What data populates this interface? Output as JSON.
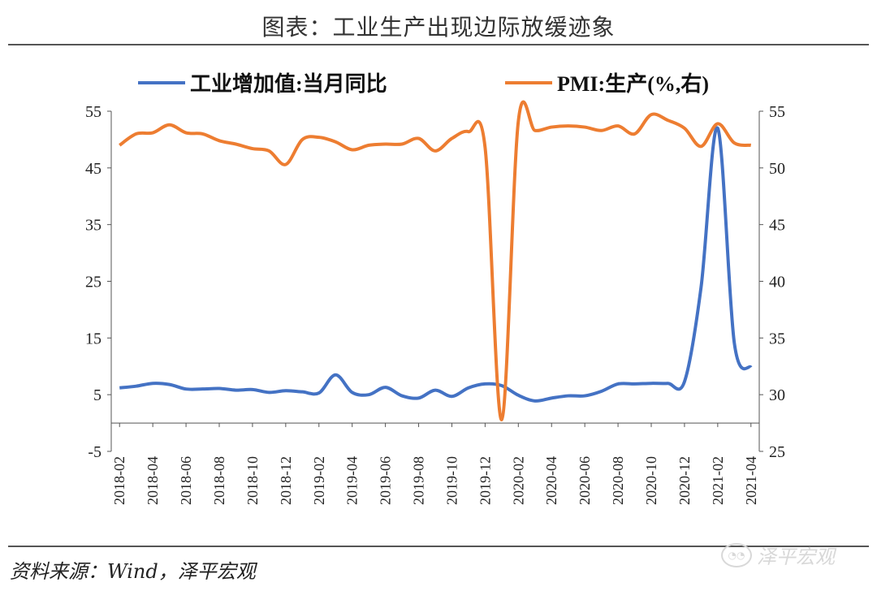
{
  "title": "图表：工业生产出现边际放缓迹象",
  "source": "资料来源：Wind，泽平宏观",
  "watermark": "泽平宏观",
  "chart_data": {
    "type": "line",
    "x": [
      "2018-02",
      "2018-03",
      "2018-04",
      "2018-05",
      "2018-06",
      "2018-07",
      "2018-08",
      "2018-09",
      "2018-10",
      "2018-11",
      "2018-12",
      "2019-01",
      "2019-02",
      "2019-03",
      "2019-04",
      "2019-05",
      "2019-06",
      "2019-07",
      "2019-08",
      "2019-09",
      "2019-10",
      "2019-11",
      "2019-12",
      "2020-01",
      "2020-02",
      "2020-03",
      "2020-04",
      "2020-05",
      "2020-06",
      "2020-07",
      "2020-08",
      "2020-09",
      "2020-10",
      "2020-11",
      "2020-12",
      "2021-01",
      "2021-02",
      "2021-03",
      "2021-04"
    ],
    "xticks": [
      "2018-02",
      "2018-04",
      "2018-06",
      "2018-08",
      "2018-10",
      "2018-12",
      "2019-02",
      "2019-04",
      "2019-06",
      "2019-08",
      "2019-10",
      "2019-12",
      "2020-02",
      "2020-04",
      "2020-06",
      "2020-08",
      "2020-10",
      "2020-12",
      "2021-02",
      "2021-04"
    ],
    "y_left": {
      "ticks": [
        "55",
        "45",
        "35",
        "25",
        "15",
        "5",
        "-5"
      ],
      "min": -5,
      "max": 55,
      "step": 10
    },
    "y_right": {
      "ticks": [
        "55",
        "50",
        "45",
        "40",
        "35",
        "30",
        "25"
      ],
      "min": 25,
      "max": 55,
      "step": 5
    },
    "series": [
      {
        "name": "工业增加值:当月同比",
        "axis": "left",
        "color": "#4472C4",
        "values": [
          6.2,
          6.5,
          7.0,
          6.8,
          6.0,
          6.0,
          6.1,
          5.8,
          5.9,
          5.4,
          5.7,
          5.5,
          5.3,
          8.5,
          5.4,
          5.0,
          6.3,
          4.8,
          4.4,
          5.8,
          4.7,
          6.2,
          6.9,
          6.6,
          4.9,
          3.9,
          4.4,
          4.8,
          4.8,
          5.6,
          6.9,
          6.9,
          7.0,
          7.0,
          7.3,
          24.0,
          52.0,
          14.1,
          9.8
        ]
      },
      {
        "name": "PMI:生产(%,右)",
        "axis": "right",
        "color": "#ED7D31",
        "values": [
          52.0,
          53.0,
          53.1,
          53.8,
          53.1,
          53.0,
          52.4,
          52.1,
          51.7,
          51.5,
          50.3,
          52.5,
          52.7,
          52.3,
          51.6,
          52.0,
          52.1,
          52.1,
          52.6,
          51.5,
          52.6,
          53.2,
          51.8,
          27.8,
          54.1,
          53.3,
          53.6,
          53.7,
          53.6,
          53.3,
          53.7,
          53.0,
          54.7,
          54.2,
          53.5,
          51.9,
          53.9,
          52.2,
          52.0
        ]
      }
    ]
  }
}
